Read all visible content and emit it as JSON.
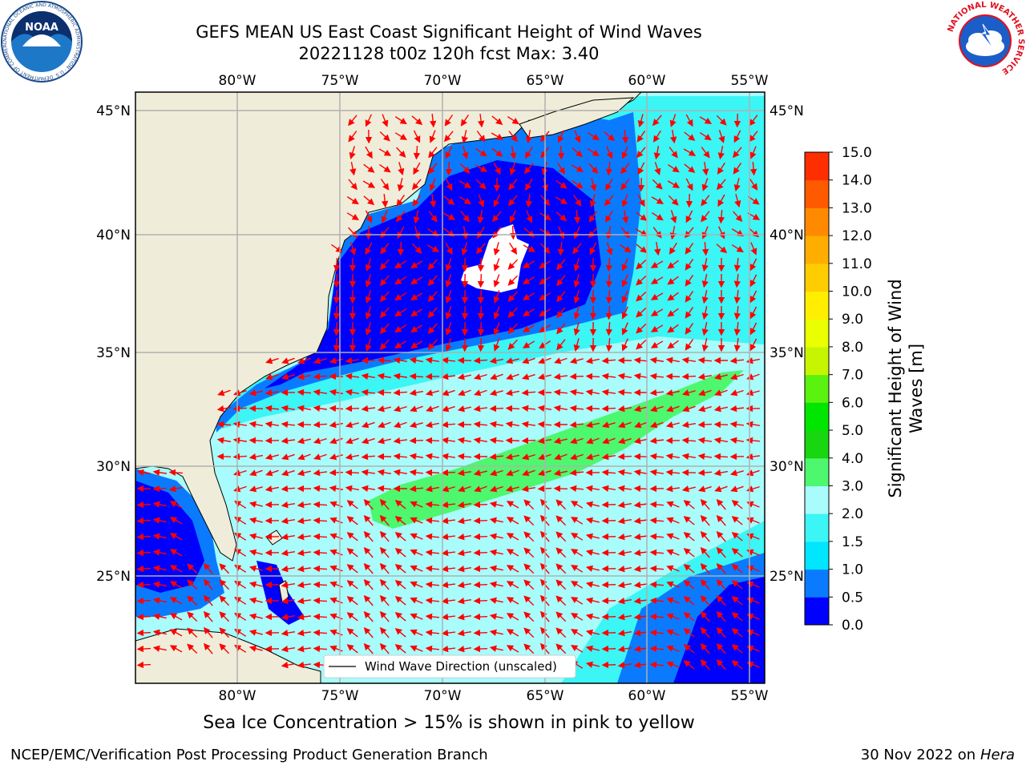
{
  "title_line1": "GEFS MEAN US East Coast Significant Height of Wind Waves",
  "title_line2": "20221128 t00z 120h fcst   Max: 3.40",
  "lon_labels": [
    "80°W",
    "75°W",
    "70°W",
    "65°W",
    "60°W",
    "55°W"
  ],
  "lat_labels": [
    "45°N",
    "40°N",
    "35°N",
    "30°N",
    "25°N"
  ],
  "legend_label": "Wind Wave Direction (unscaled)",
  "colorbar": {
    "label_line1": "Significant Height of Wind",
    "label_line2": "Waves [m]",
    "ticks": [
      "0.0",
      "0.5",
      "1.0",
      "1.5",
      "2.0",
      "3.0",
      "4.0",
      "5.0",
      "6.0",
      "7.0",
      "8.0",
      "9.0",
      "10.0",
      "11.0",
      "12.0",
      "13.0",
      "14.0",
      "15.0"
    ],
    "colors": [
      "#0000ff",
      "#0a7bff",
      "#00e6ff",
      "#3cf5f5",
      "#a8fcfc",
      "#4df76e",
      "#18d60f",
      "#00e600",
      "#5cf20f",
      "#c7f500",
      "#eaff00",
      "#ffee00",
      "#ffcc00",
      "#ffae00",
      "#ff8a00",
      "#ff5a00",
      "#ff2e00",
      "#ff0000"
    ]
  },
  "ice_note": "Sea Ice Concentration > 15% is shown in pink to yellow",
  "org": "NCEP/EMC/Verification Post Processing Product Generation Branch",
  "date": "30 Nov 2022 on",
  "host": "Hera",
  "noaa_text": "NOAA",
  "noaa_ring": "NATIONAL OCEANIC AND ATMOSPHERIC ADMINISTRATION · U.S. DEPARTMENT OF COMMERCE ·",
  "nws_ring": "NATIONAL WEATHER SERVICE",
  "colors": {
    "land": "#efedda",
    "arrow": "#ff0000",
    "grid": "#b0b0b0"
  }
}
